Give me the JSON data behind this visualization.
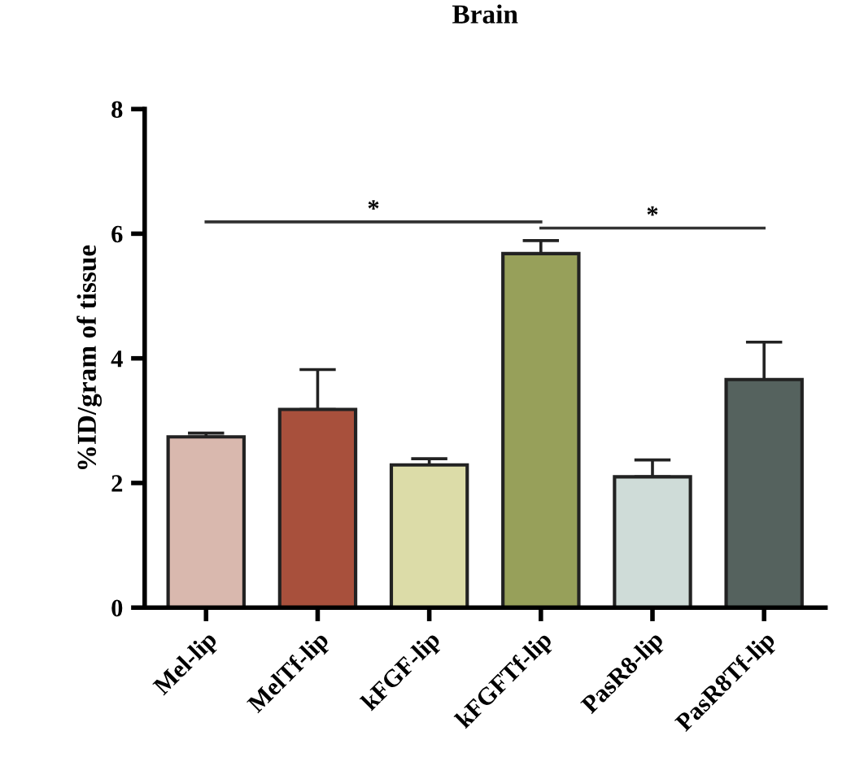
{
  "chart_data": {
    "type": "bar",
    "title": "Brain",
    "ylabel": "%ID/gram of tissue",
    "categories": [
      "Mel-lip",
      "MelTf-lip",
      "kFGF-lip",
      "kFGFTf-lip",
      "PasR8-lip",
      "PasR8Tf-lip"
    ],
    "values": [
      2.74,
      3.18,
      2.29,
      5.68,
      2.1,
      3.66
    ],
    "errors": [
      0.06,
      0.64,
      0.1,
      0.21,
      0.27,
      0.6
    ],
    "colors": [
      "#d9b8ae",
      "#a8503c",
      "#dcdca8",
      "#97a05a",
      "#cfdcd8",
      "#55625e"
    ],
    "ylim": [
      0,
      8
    ],
    "yticks": [
      0,
      2,
      4,
      6,
      8
    ],
    "grid": false,
    "legend": false,
    "annotations": [
      "*",
      "*"
    ]
  }
}
